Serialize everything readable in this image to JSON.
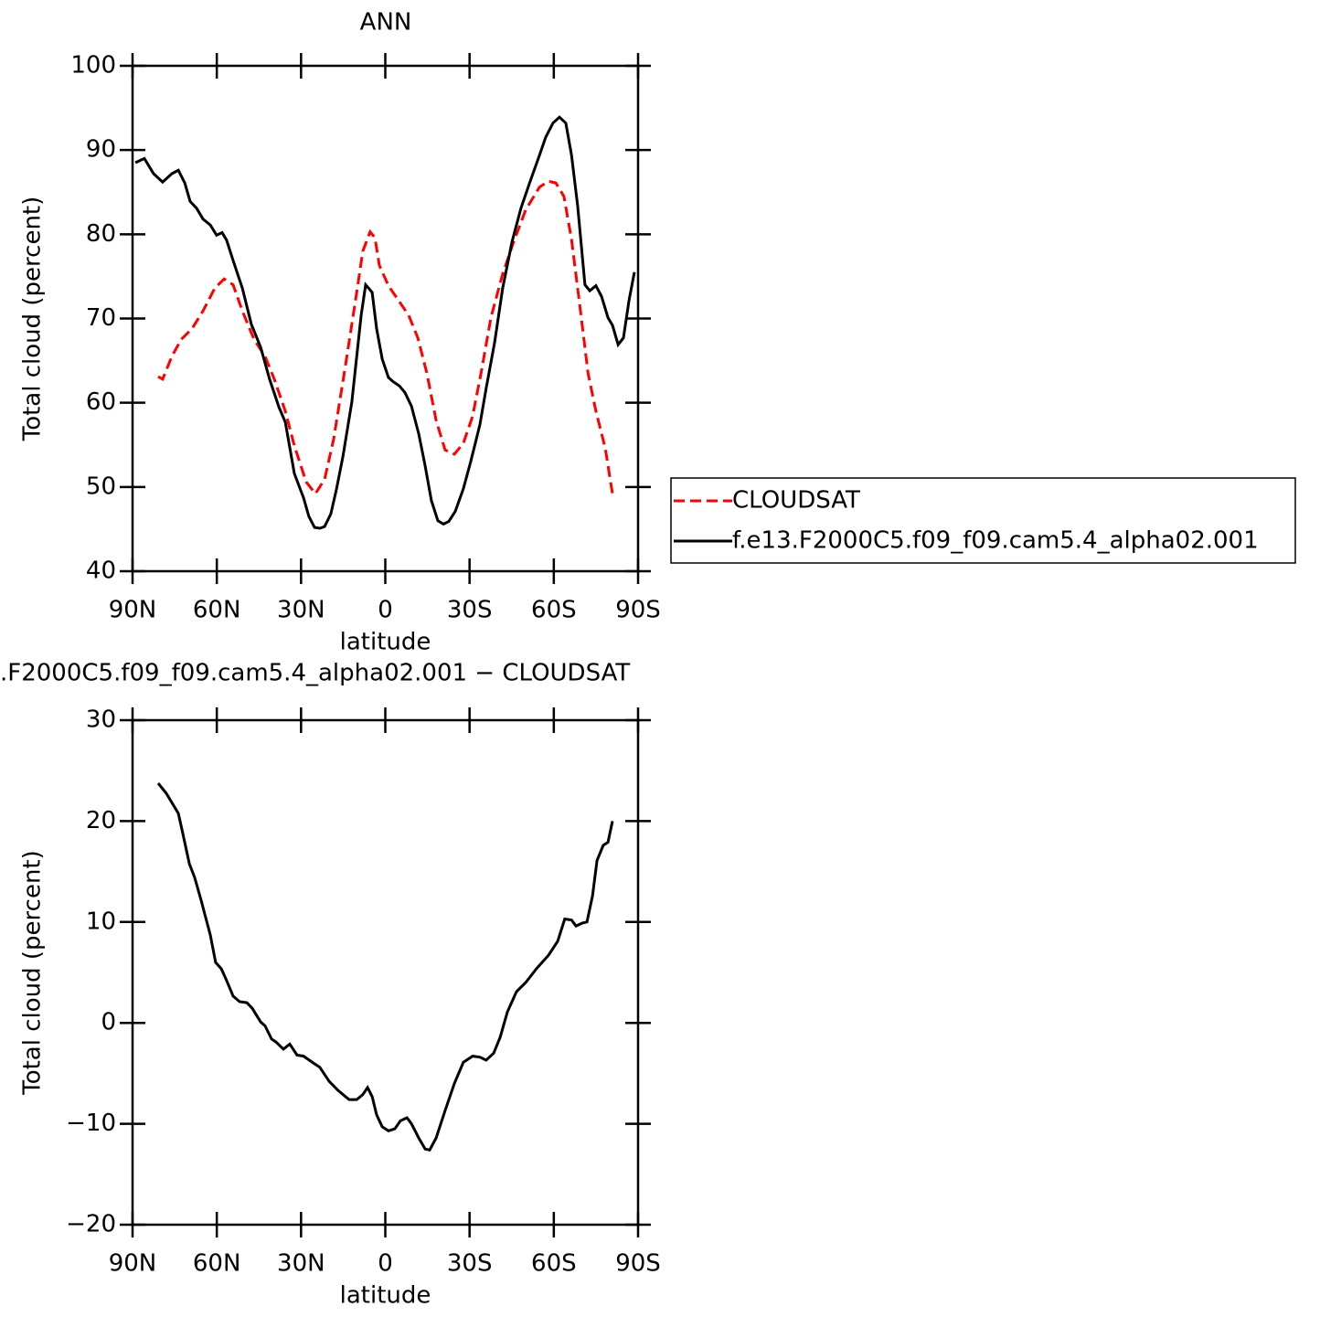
{
  "chart_data": [
    {
      "type": "line",
      "title": "ANN",
      "xlabel": "latitude",
      "ylabel": "Total cloud (percent)",
      "xlim": [
        90,
        -90
      ],
      "ylim": [
        40,
        100
      ],
      "xticks": [
        {
          "value": 90,
          "label": "90N"
        },
        {
          "value": 60,
          "label": "60N"
        },
        {
          "value": 30,
          "label": "30N"
        },
        0,
        {
          "value": -30,
          "label": "30S"
        },
        {
          "value": -60,
          "label": "60S"
        },
        {
          "value": -90,
          "label": "90S"
        }
      ],
      "yticks": [
        40,
        50,
        60,
        70,
        80,
        90,
        100
      ],
      "legend": "right",
      "series": [
        {
          "name": "CLOUDSAT",
          "color": "#ff0000",
          "dash": "dashed",
          "x": [
            80.9,
            79.3,
            76.0,
            72.7,
            68.8,
            64.9,
            60.7,
            57.4,
            54.2,
            50.9,
            46.7,
            42.8,
            39.5,
            35.6,
            32.4,
            28.2,
            24.9,
            21.6,
            18.4,
            14.2,
            10.2,
            8.0,
            5.4,
            3.7,
            2.1,
            -1.1,
            -5.0,
            -8.3,
            -11.6,
            -14.8,
            -18.1,
            -21.3,
            -24.6,
            -27.8,
            -31.1,
            -34.3,
            -37.6,
            -41.8,
            -45.7,
            -50.0,
            -54.9,
            -58.1,
            -60.7,
            -63.6,
            -66.3,
            -69.5,
            -72.2,
            -75.0,
            -78.3,
            -80.9
          ],
          "values": [
            63.1,
            62.8,
            65.5,
            67.5,
            68.8,
            70.9,
            73.6,
            74.7,
            74.0,
            70.9,
            67.5,
            65.5,
            62.8,
            59.0,
            54.9,
            50.6,
            49.2,
            50.9,
            55.7,
            64.4,
            73.1,
            78.0,
            80.3,
            79.6,
            76.3,
            73.9,
            72.0,
            70.4,
            67.7,
            63.5,
            57.9,
            54.4,
            53.9,
            55.2,
            58.4,
            63.9,
            70.1,
            75.3,
            79.1,
            82.9,
            85.6,
            86.3,
            86.1,
            84.5,
            79.4,
            70.9,
            63.5,
            59.0,
            54.6,
            49.2
          ]
        },
        {
          "name": "f.e13.F2000C5.f09_f09.cam5.4_alpha02.001",
          "color": "#000000",
          "dash": "solid",
          "x": [
            89.0,
            85.8,
            82.5,
            79.3,
            76.0,
            73.7,
            71.4,
            69.5,
            67.2,
            64.9,
            62.3,
            60.1,
            58.1,
            56.5,
            54.2,
            50.9,
            47.7,
            44.4,
            41.2,
            37.9,
            35.6,
            32.4,
            29.1,
            27.2,
            25.2,
            23.3,
            21.6,
            19.4,
            17.4,
            15.1,
            11.9,
            8.6,
            7.0,
            4.7,
            3.1,
            1.1,
            -1.1,
            -2.8,
            -5.0,
            -7.0,
            -9.3,
            -11.9,
            -14.2,
            -16.4,
            -18.7,
            -20.7,
            -22.6,
            -24.9,
            -27.8,
            -30.4,
            -33.7,
            -35.9,
            -38.9,
            -41.8,
            -45.1,
            -48.3,
            -51.6,
            -54.9,
            -57.1,
            -59.7,
            -62.0,
            -64.3,
            -66.3,
            -68.5,
            -71.1,
            -72.8,
            -75.0,
            -77.0,
            -79.3,
            -80.9,
            -82.9,
            -84.8,
            -86.8,
            -88.7
          ],
          "values": [
            88.5,
            89.0,
            87.2,
            86.2,
            87.2,
            87.6,
            86.1,
            83.9,
            83.1,
            81.8,
            81.1,
            79.9,
            80.2,
            79.3,
            76.9,
            73.6,
            69.3,
            66.6,
            62.8,
            59.5,
            57.7,
            51.6,
            48.7,
            46.5,
            45.2,
            45.1,
            45.3,
            46.8,
            49.7,
            53.6,
            60.1,
            70.4,
            74.0,
            73.1,
            68.8,
            65.2,
            63.0,
            62.5,
            62.0,
            61.2,
            59.6,
            56.3,
            52.5,
            48.4,
            46.0,
            45.6,
            45.9,
            47.1,
            49.8,
            53.0,
            57.4,
            61.7,
            67.1,
            73.6,
            79.1,
            83.1,
            86.3,
            89.4,
            91.5,
            93.2,
            93.9,
            93.2,
            89.4,
            83.4,
            74.0,
            73.3,
            73.9,
            72.6,
            70.1,
            69.2,
            66.9,
            67.7,
            72.2,
            75.5
          ]
        }
      ]
    },
    {
      "type": "line",
      "title": ".F2000C5.f09_f09.cam5.4_alpha02.001 − CLOUDSAT",
      "xlabel": "latitude",
      "ylabel": "Total cloud (percent)",
      "xlim": [
        90,
        -90
      ],
      "ylim": [
        -20,
        30
      ],
      "xticks": [
        {
          "value": 90,
          "label": "90N"
        },
        {
          "value": 60,
          "label": "60N"
        },
        {
          "value": 30,
          "label": "30N"
        },
        0,
        {
          "value": -30,
          "label": "30S"
        },
        {
          "value": -60,
          "label": "60S"
        },
        {
          "value": -90,
          "label": "90S"
        }
      ],
      "yticks": [
        {
          "value": -20,
          "label": "−20"
        },
        {
          "value": -10,
          "label": "−10"
        },
        0,
        10,
        20,
        30
      ],
      "color": "#000000",
      "x": [
        80.9,
        78.0,
        73.7,
        72.1,
        69.8,
        67.9,
        65.6,
        62.3,
        60.4,
        58.4,
        56.5,
        54.2,
        51.9,
        49.3,
        47.4,
        44.4,
        42.8,
        40.5,
        38.9,
        36.3,
        34.0,
        31.4,
        29.1,
        25.5,
        23.3,
        20.0,
        16.8,
        12.9,
        10.2,
        8.0,
        6.3,
        4.7,
        3.1,
        1.1,
        -1.1,
        -3.4,
        -5.4,
        -7.7,
        -9.3,
        -11.9,
        -14.2,
        -15.8,
        -18.1,
        -21.3,
        -24.6,
        -27.8,
        -31.1,
        -33.7,
        -35.9,
        -38.6,
        -40.9,
        -43.5,
        -46.7,
        -50.0,
        -53.9,
        -58.1,
        -61.4,
        -63.9,
        -66.3,
        -67.9,
        -70.2,
        -71.8,
        -73.8,
        -75.4,
        -77.6,
        -79.3,
        -80.9
      ],
      "values": [
        23.75,
        22.75,
        20.76,
        18.77,
        15.78,
        14.42,
        12.16,
        8.7,
        6.0,
        5.36,
        4.2,
        2.65,
        2.1,
        2.0,
        1.45,
        0.1,
        -0.3,
        -1.6,
        -1.9,
        -2.6,
        -2.1,
        -3.2,
        -3.3,
        -4.0,
        -4.4,
        -5.8,
        -6.7,
        -7.6,
        -7.6,
        -7.1,
        -6.4,
        -7.3,
        -9.1,
        -10.3,
        -10.7,
        -10.5,
        -9.7,
        -9.4,
        -10.0,
        -11.4,
        -12.5,
        -12.6,
        -11.4,
        -8.7,
        -6.0,
        -3.9,
        -3.3,
        -3.4,
        -3.7,
        -3.0,
        -1.4,
        1.1,
        3.1,
        4.0,
        5.4,
        6.7,
        8.1,
        10.3,
        10.2,
        9.6,
        9.9,
        10.0,
        12.6,
        16.1,
        17.6,
        17.9,
        20.0
      ]
    }
  ]
}
